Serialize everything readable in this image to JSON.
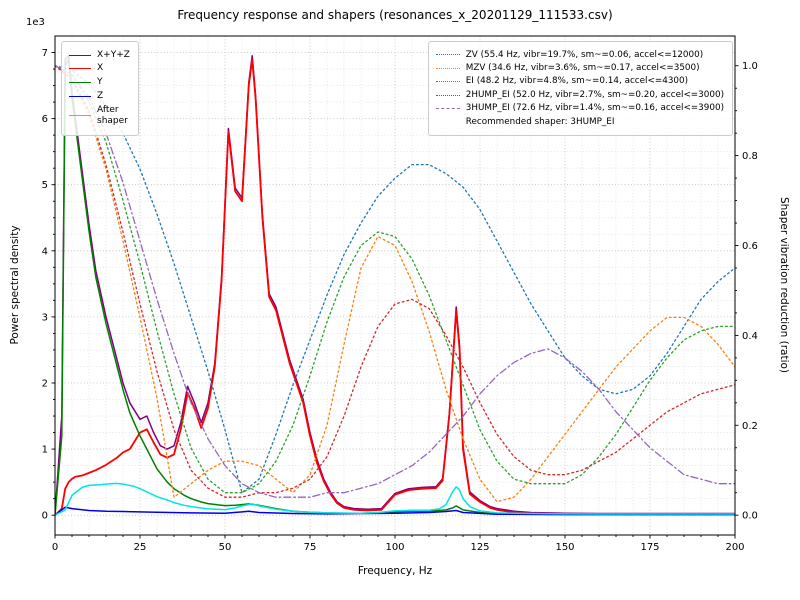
{
  "chart_data": {
    "type": "line",
    "title": "Frequency response and shapers (resonances_x_20201129_111533.csv)",
    "xlabel": "Frequency, Hz",
    "left_axis": {
      "label": "Power spectral density",
      "offset_text": "1e3",
      "range": [
        0,
        7000
      ],
      "tick_labels": [
        "0",
        "1",
        "2",
        "3",
        "4",
        "5",
        "6",
        "7"
      ],
      "tick_values": [
        0,
        1000,
        2000,
        3000,
        4000,
        5000,
        6000,
        7000
      ]
    },
    "right_axis": {
      "label": "Shaper vibration reduction (ratio)",
      "range": [
        0,
        1
      ],
      "tick_labels": [
        "0.0",
        "0.2",
        "0.4",
        "0.6",
        "0.8",
        "1.0"
      ],
      "tick_values": [
        0,
        0.2,
        0.4,
        0.6,
        0.8,
        1.0
      ]
    },
    "x_axis": {
      "range": [
        0,
        200
      ],
      "tick_labels": [
        "0",
        "25",
        "50",
        "75",
        "100",
        "125",
        "150",
        "175",
        "200"
      ],
      "tick_values": [
        0,
        25,
        50,
        75,
        100,
        125,
        150,
        175,
        200
      ]
    },
    "legend_note": "Recommended shaper: 3HUMP_EI",
    "psd_series": [
      {
        "name": "X+Y+Z",
        "color": "#800080",
        "dash": "solid",
        "axis": "left",
        "x": [
          0,
          2,
          3,
          4,
          5,
          6,
          8,
          10,
          12,
          15,
          18,
          20,
          22,
          25,
          27,
          29,
          31,
          33,
          35,
          37,
          39,
          41,
          43,
          45,
          47,
          49,
          51,
          53,
          55,
          57,
          58,
          59,
          61,
          63,
          65,
          67,
          69,
          71,
          73,
          75,
          77,
          79,
          81,
          83,
          85,
          88,
          92,
          96,
          100,
          104,
          108,
          112,
          114,
          116,
          118,
          119,
          120,
          122,
          125,
          128,
          130,
          135,
          140,
          150,
          160,
          170,
          180,
          190,
          200
        ],
        "y": [
          0,
          1500,
          6900,
          6950,
          6400,
          6000,
          5200,
          4400,
          3700,
          3000,
          2400,
          2000,
          1700,
          1450,
          1500,
          1250,
          1050,
          1000,
          1050,
          1400,
          1950,
          1700,
          1400,
          1700,
          2300,
          3600,
          5850,
          4950,
          4800,
          6550,
          6950,
          6350,
          4550,
          3350,
          3150,
          2750,
          2350,
          2050,
          1750,
          1250,
          850,
          550,
          350,
          200,
          130,
          100,
          90,
          100,
          330,
          400,
          420,
          430,
          550,
          1550,
          3150,
          2550,
          1050,
          350,
          220,
          130,
          100,
          60,
          40,
          30,
          25,
          25,
          25,
          25,
          25
        ]
      },
      {
        "name": "X",
        "color": "#ff0000",
        "dash": "solid",
        "axis": "left",
        "x": [
          0,
          2,
          3,
          4,
          5,
          6,
          8,
          10,
          12,
          15,
          18,
          20,
          22,
          25,
          27,
          29,
          31,
          33,
          35,
          37,
          39,
          41,
          43,
          45,
          47,
          49,
          51,
          53,
          55,
          57,
          58,
          59,
          61,
          63,
          65,
          67,
          69,
          71,
          73,
          75,
          77,
          79,
          81,
          83,
          85,
          88,
          92,
          96,
          100,
          104,
          108,
          112,
          114,
          116,
          118,
          119,
          120,
          122,
          125,
          128,
          130,
          135,
          140,
          150,
          160,
          170,
          180,
          190,
          200
        ],
        "y": [
          0,
          100,
          400,
          500,
          550,
          580,
          600,
          640,
          680,
          760,
          860,
          950,
          1000,
          1250,
          1300,
          1100,
          920,
          870,
          920,
          1300,
          1850,
          1620,
          1320,
          1620,
          2250,
          3550,
          5800,
          4900,
          4750,
          6500,
          6900,
          6300,
          4500,
          3300,
          3100,
          2700,
          2300,
          2000,
          1700,
          1200,
          800,
          520,
          320,
          180,
          110,
          80,
          70,
          80,
          310,
          380,
          400,
          410,
          520,
          1520,
          3100,
          2500,
          1000,
          320,
          200,
          110,
          80,
          40,
          25,
          15,
          15,
          15,
          15,
          15,
          15
        ]
      },
      {
        "name": "Y",
        "color": "#008000",
        "dash": "solid",
        "axis": "left",
        "x": [
          0,
          2,
          3,
          4,
          5,
          6,
          8,
          10,
          12,
          15,
          18,
          20,
          22,
          25,
          28,
          30,
          33,
          35,
          38,
          40,
          43,
          45,
          48,
          50,
          53,
          55,
          57,
          60,
          63,
          65,
          70,
          75,
          80,
          85,
          90,
          95,
          100,
          105,
          110,
          115,
          117,
          118,
          120,
          125,
          130,
          140,
          150,
          160,
          180,
          200
        ],
        "y": [
          0,
          1200,
          6800,
          6900,
          6300,
          5900,
          5100,
          4300,
          3600,
          2900,
          2300,
          1900,
          1550,
          1200,
          900,
          700,
          500,
          400,
          300,
          250,
          200,
          175,
          155,
          145,
          150,
          160,
          170,
          150,
          120,
          100,
          60,
          45,
          35,
          30,
          30,
          35,
          50,
          60,
          60,
          80,
          110,
          140,
          80,
          40,
          20,
          12,
          10,
          10,
          10,
          10
        ]
      },
      {
        "name": "Z",
        "color": "#0000ee",
        "dash": "solid",
        "axis": "left",
        "x": [
          0,
          3,
          5,
          10,
          15,
          20,
          30,
          40,
          50,
          55,
          57,
          60,
          70,
          80,
          90,
          100,
          110,
          115,
          118,
          120,
          130,
          150,
          200
        ],
        "y": [
          0,
          120,
          100,
          70,
          60,
          55,
          45,
          35,
          30,
          50,
          60,
          40,
          25,
          20,
          25,
          30,
          40,
          55,
          70,
          40,
          15,
          10,
          10
        ]
      },
      {
        "name": "After\nshaper",
        "color": "#00e5e5",
        "dash": "solid",
        "axis": "left",
        "x": [
          0,
          3,
          5,
          8,
          10,
          13,
          15,
          18,
          20,
          23,
          25,
          28,
          30,
          33,
          35,
          38,
          40,
          45,
          50,
          53,
          55,
          57,
          58,
          60,
          63,
          65,
          70,
          75,
          80,
          90,
          95,
          100,
          105,
          110,
          113,
          115,
          117,
          118,
          119,
          120,
          122,
          125,
          130,
          140,
          150,
          160,
          180,
          200
        ],
        "y": [
          0,
          80,
          300,
          420,
          450,
          460,
          470,
          480,
          470,
          440,
          400,
          330,
          280,
          230,
          190,
          150,
          130,
          95,
          85,
          110,
          140,
          160,
          170,
          140,
          110,
          90,
          60,
          45,
          35,
          28,
          40,
          65,
          75,
          75,
          95,
          160,
          360,
          430,
          380,
          250,
          130,
          65,
          35,
          25,
          20,
          18,
          18,
          18
        ]
      }
    ],
    "shaper_series": [
      {
        "name": "ZV",
        "label": "ZV (55.4 Hz, vibr=19.7%, sm~=0.06, accel<=12000)",
        "color": "#1f77b4",
        "dash": "dotted",
        "axis": "right",
        "x": [
          0,
          5,
          10,
          15,
          20,
          25,
          30,
          35,
          40,
          45,
          50,
          55,
          60,
          65,
          70,
          75,
          80,
          85,
          90,
          95,
          100,
          105,
          110,
          115,
          120,
          125,
          130,
          135,
          140,
          145,
          150,
          155,
          160,
          165,
          170,
          175,
          180,
          185,
          190,
          195,
          200
        ],
        "y": [
          1.0,
          0.99,
          0.96,
          0.91,
          0.85,
          0.77,
          0.67,
          0.56,
          0.44,
          0.32,
          0.19,
          0.05,
          0.08,
          0.18,
          0.29,
          0.39,
          0.49,
          0.58,
          0.65,
          0.71,
          0.75,
          0.78,
          0.78,
          0.76,
          0.73,
          0.68,
          0.61,
          0.54,
          0.47,
          0.41,
          0.35,
          0.31,
          0.28,
          0.27,
          0.28,
          0.31,
          0.36,
          0.42,
          0.48,
          0.52,
          0.55
        ]
      },
      {
        "name": "MZV",
        "label": "MZV (34.6 Hz, vibr=3.6%, sm~=0.17, accel<=3500)",
        "color": "#ff7f0e",
        "dash": "dotted",
        "axis": "right",
        "x": [
          0,
          5,
          10,
          15,
          20,
          25,
          30,
          35,
          40,
          45,
          50,
          55,
          60,
          65,
          70,
          75,
          80,
          85,
          90,
          95,
          100,
          105,
          110,
          115,
          120,
          125,
          130,
          135,
          140,
          145,
          150,
          155,
          160,
          165,
          170,
          175,
          180,
          185,
          190,
          195,
          200
        ],
        "y": [
          1.0,
          0.97,
          0.89,
          0.77,
          0.61,
          0.44,
          0.26,
          0.04,
          0.07,
          0.1,
          0.12,
          0.12,
          0.11,
          0.08,
          0.05,
          0.09,
          0.2,
          0.38,
          0.55,
          0.62,
          0.6,
          0.52,
          0.41,
          0.28,
          0.17,
          0.08,
          0.03,
          0.04,
          0.08,
          0.13,
          0.18,
          0.23,
          0.28,
          0.33,
          0.37,
          0.41,
          0.44,
          0.44,
          0.42,
          0.38,
          0.33
        ]
      },
      {
        "name": "EI",
        "label": "EI (48.2 Hz, vibr=4.8%, sm~=0.14, accel<=4300)",
        "color": "#2ca02c",
        "dash": "dotted",
        "axis": "right",
        "x": [
          0,
          5,
          10,
          15,
          20,
          25,
          30,
          35,
          40,
          45,
          50,
          55,
          60,
          65,
          70,
          75,
          80,
          85,
          90,
          95,
          100,
          105,
          110,
          115,
          120,
          125,
          130,
          135,
          140,
          145,
          150,
          155,
          160,
          165,
          170,
          175,
          180,
          185,
          190,
          195,
          200
        ],
        "y": [
          1.0,
          0.98,
          0.92,
          0.83,
          0.7,
          0.56,
          0.41,
          0.27,
          0.15,
          0.08,
          0.05,
          0.05,
          0.07,
          0.12,
          0.2,
          0.31,
          0.43,
          0.53,
          0.6,
          0.63,
          0.62,
          0.57,
          0.49,
          0.39,
          0.29,
          0.19,
          0.12,
          0.08,
          0.07,
          0.07,
          0.07,
          0.09,
          0.13,
          0.18,
          0.24,
          0.3,
          0.35,
          0.39,
          0.41,
          0.42,
          0.42
        ]
      },
      {
        "name": "2HUMP_EI",
        "label": "2HUMP_EI (52.0 Hz, vibr=2.7%, sm~=0.20, accel<=3000)",
        "color": "#d62728",
        "dash": "dotted",
        "axis": "right",
        "x": [
          0,
          5,
          10,
          15,
          20,
          25,
          30,
          35,
          40,
          45,
          50,
          55,
          60,
          65,
          70,
          75,
          80,
          85,
          90,
          95,
          100,
          105,
          110,
          115,
          120,
          125,
          130,
          135,
          140,
          145,
          150,
          155,
          160,
          165,
          170,
          175,
          180,
          185,
          190,
          195,
          200
        ],
        "y": [
          1.0,
          0.97,
          0.9,
          0.78,
          0.63,
          0.47,
          0.32,
          0.19,
          0.1,
          0.06,
          0.04,
          0.04,
          0.05,
          0.05,
          0.06,
          0.08,
          0.13,
          0.22,
          0.33,
          0.42,
          0.47,
          0.48,
          0.46,
          0.4,
          0.33,
          0.25,
          0.18,
          0.13,
          0.1,
          0.09,
          0.09,
          0.1,
          0.12,
          0.14,
          0.17,
          0.2,
          0.23,
          0.25,
          0.27,
          0.28,
          0.29
        ]
      },
      {
        "name": "3HUMP_EI",
        "label": "3HUMP_EI (72.6 Hz, vibr=1.4%, sm~=0.16, accel<=3900)",
        "color": "#9467bd",
        "dash": "dashdot",
        "axis": "right",
        "x": [
          0,
          5,
          10,
          15,
          20,
          25,
          30,
          35,
          40,
          45,
          50,
          55,
          60,
          65,
          70,
          75,
          80,
          85,
          90,
          95,
          100,
          105,
          110,
          115,
          120,
          125,
          130,
          135,
          140,
          145,
          150,
          155,
          160,
          165,
          170,
          175,
          180,
          185,
          190,
          195,
          200
        ],
        "y": [
          1.0,
          0.98,
          0.93,
          0.85,
          0.74,
          0.61,
          0.48,
          0.36,
          0.25,
          0.17,
          0.11,
          0.07,
          0.05,
          0.04,
          0.04,
          0.04,
          0.05,
          0.05,
          0.06,
          0.07,
          0.09,
          0.11,
          0.14,
          0.18,
          0.22,
          0.27,
          0.31,
          0.34,
          0.36,
          0.37,
          0.35,
          0.32,
          0.28,
          0.23,
          0.19,
          0.15,
          0.12,
          0.09,
          0.08,
          0.07,
          0.07
        ]
      }
    ]
  }
}
